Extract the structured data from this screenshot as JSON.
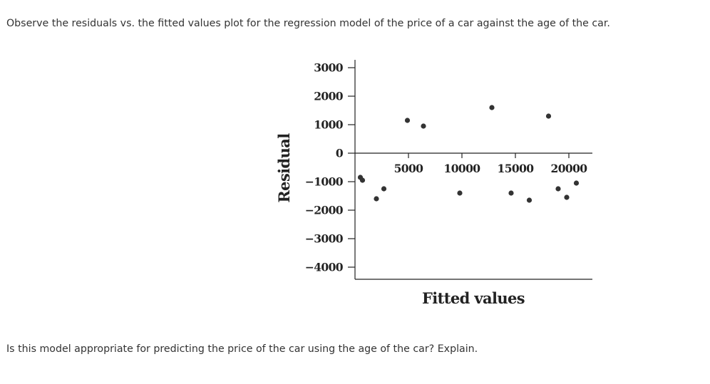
{
  "question": {
    "prompt": "Observe the residuals vs. the fitted values plot for the regression model of the price of a car against the age of the car.",
    "follow_up": "Is this model appropriate for predicting the price of the car using the age of the car? Explain."
  },
  "chart_data": {
    "type": "scatter",
    "title": "",
    "xlabel": "Fitted values",
    "ylabel": "Residual",
    "xlim": [
      -500,
      22000
    ],
    "ylim": [
      -4400,
      3300
    ],
    "x_ticks": [
      5000,
      10000,
      15000,
      20000
    ],
    "x_tick_labels": [
      "5000",
      "10000",
      "15000",
      "20000"
    ],
    "y_ticks": [
      3000,
      2000,
      1000,
      0,
      -1000,
      -2000,
      -3000,
      -4000
    ],
    "y_tick_labels": [
      "3000",
      "2000",
      "1000",
      "0",
      "−1000",
      "−2000",
      "−3000",
      "−4000"
    ],
    "grid": false,
    "marker_color": "#333333",
    "points": [
      {
        "x": 500,
        "y": -850
      },
      {
        "x": 700,
        "y": -950
      },
      {
        "x": 2000,
        "y": -1600
      },
      {
        "x": 2700,
        "y": -1250
      },
      {
        "x": 4900,
        "y": 1150
      },
      {
        "x": 6400,
        "y": 950
      },
      {
        "x": 9800,
        "y": -1400
      },
      {
        "x": 12800,
        "y": 1600
      },
      {
        "x": 14600,
        "y": -1400
      },
      {
        "x": 16300,
        "y": -1650
      },
      {
        "x": 18100,
        "y": 1300
      },
      {
        "x": 19000,
        "y": -1250
      },
      {
        "x": 19800,
        "y": -1550
      },
      {
        "x": 20700,
        "y": -1050
      }
    ]
  }
}
